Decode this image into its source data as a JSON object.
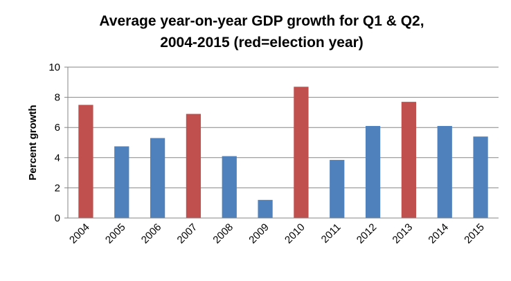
{
  "chart_data": {
    "type": "bar",
    "title_line1": "Average year-on-year GDP growth for Q1 & Q2,",
    "title_line2": "2004-2015 (red=election year)",
    "xlabel": "",
    "ylabel": "Percent growth",
    "ylim": [
      0,
      10
    ],
    "yticks": [
      0,
      2,
      4,
      6,
      8,
      10
    ],
    "grid": true,
    "categories": [
      "2004",
      "2005",
      "2006",
      "2007",
      "2008",
      "2009",
      "2010",
      "2011",
      "2012",
      "2013",
      "2014",
      "2015"
    ],
    "values": [
      7.5,
      4.75,
      5.3,
      6.9,
      4.1,
      1.2,
      8.7,
      3.85,
      6.1,
      7.7,
      6.1,
      5.4
    ],
    "election_year": [
      true,
      false,
      false,
      true,
      false,
      false,
      true,
      false,
      false,
      true,
      false,
      false
    ],
    "colors": {
      "election": "#C0504D",
      "non_election": "#4F81BD",
      "gridline": "#868686",
      "axis": "#868686"
    }
  }
}
